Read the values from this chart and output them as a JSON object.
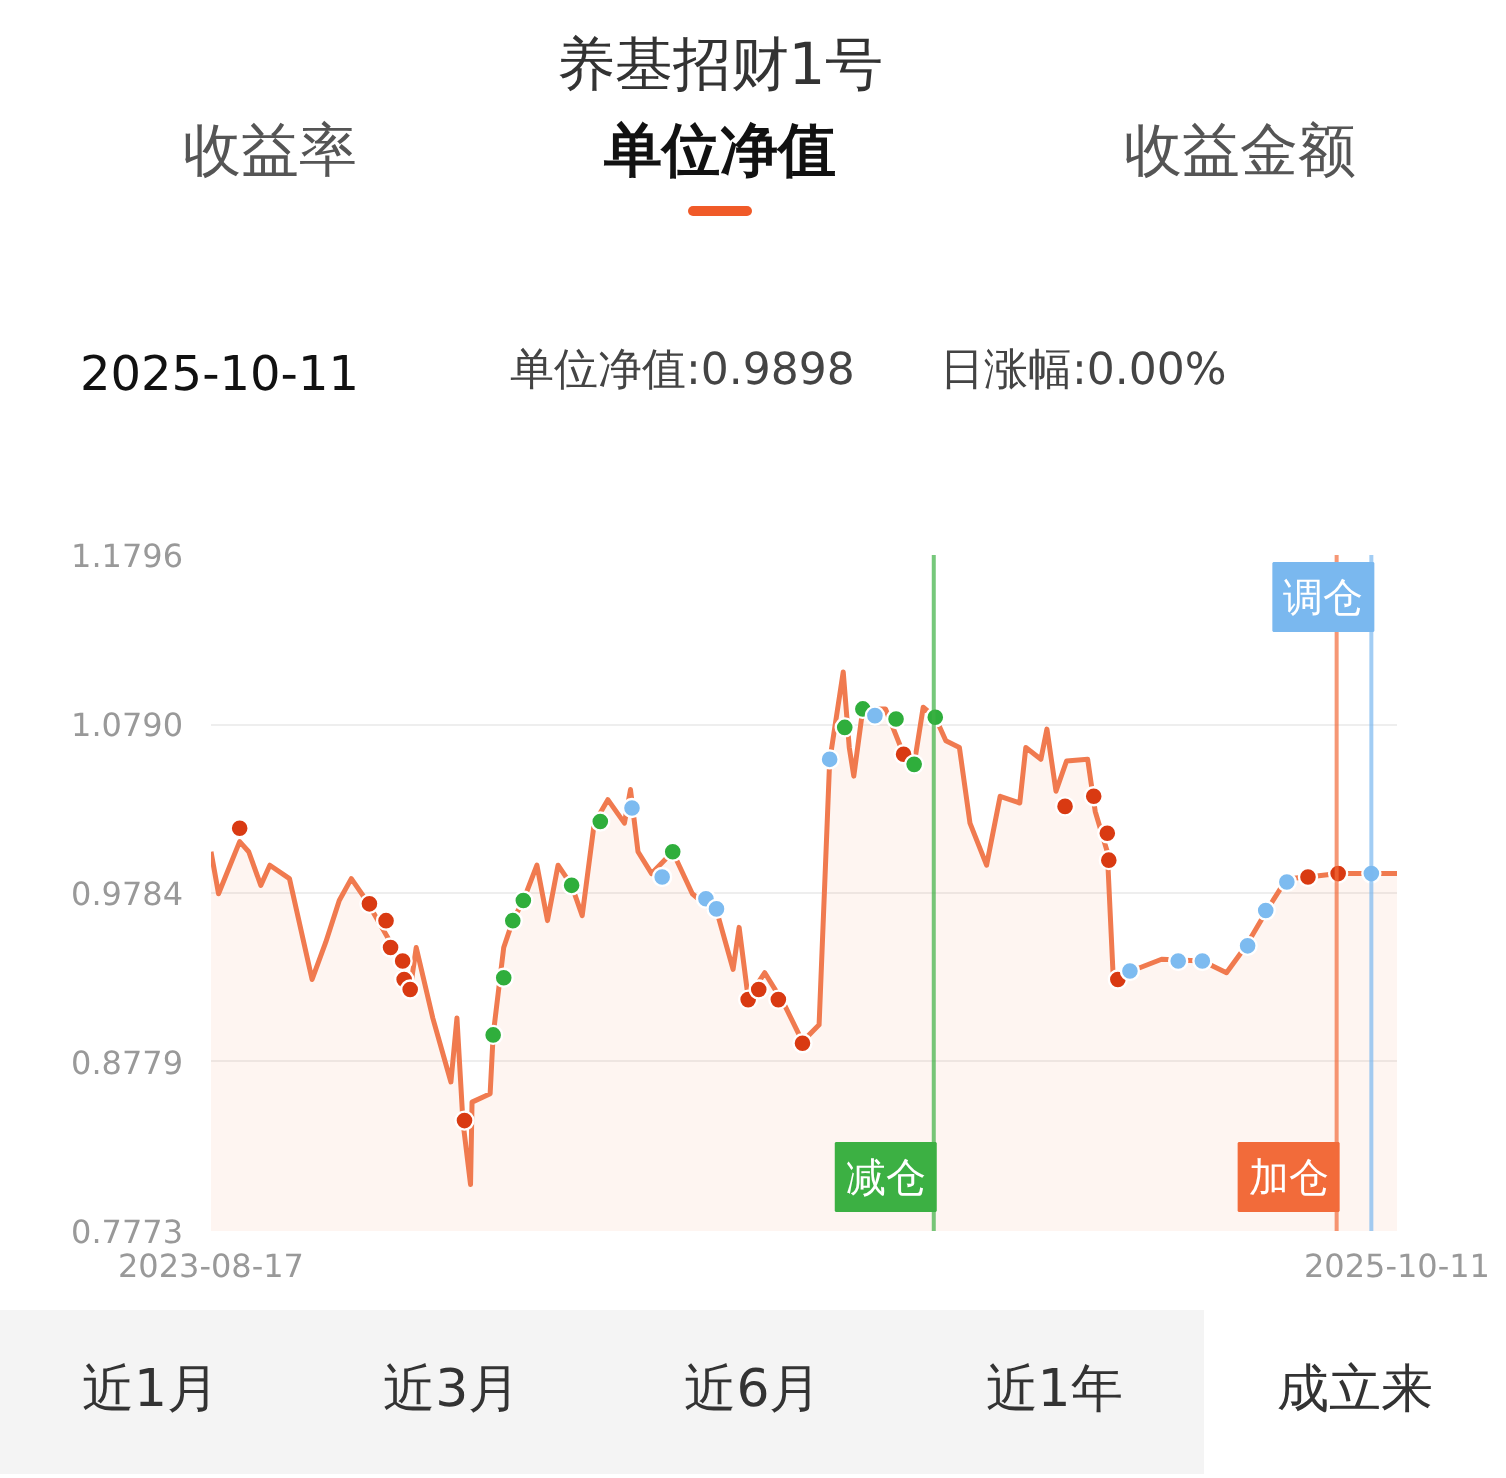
{
  "chart_data": {
    "type": "area",
    "title": "养基招财1号",
    "annotations": [
      "收益率",
      "单位净值",
      "收益金额",
      "2025-10-11",
      "单位净值:0.9898",
      "日涨幅:0.00%",
      "近1月",
      "近3月",
      "近6月",
      "近1年",
      "成立来"
    ],
    "xlim": [
      "2023-08-17",
      "2025-10-11"
    ],
    "xticks": [
      {
        "value": "2023-08-17",
        "label": "2023-08-17"
      },
      {
        "value": "2025-10-11",
        "label": "2025-10-11"
      }
    ],
    "ylim": [
      0.7773,
      1.1796
    ],
    "yticks": [
      0.7773,
      0.8779,
      0.9784,
      {
        "value": 1.079,
        "label": "1.0790"
      },
      1.1796
    ],
    "grid": "y",
    "ref_lines": [
      {
        "axis": "x",
        "value": "2024-12-08",
        "label": "减仓",
        "color": "#3cb043"
      },
      {
        "axis": "x",
        "value": "2025-09-01",
        "label": "加仓",
        "color": "#f26b3a"
      },
      {
        "axis": "x",
        "value": "2025-09-24",
        "label": "调仓",
        "color": "#7ab8ef"
      }
    ],
    "series": [
      {
        "color": "#f07a4f",
        "marker": "none",
        "x": [
          "2023-08-17",
          "2023-08-22",
          "2023-09-05",
          "2023-09-11",
          "2023-09-19",
          "2023-09-25",
          "2023-10-08",
          "2023-10-23",
          "2023-11-01",
          "2023-11-10",
          "2023-11-18",
          "2023-11-28",
          "2023-12-14",
          "2023-12-27",
          "2023-12-31",
          "2024-01-11",
          "2024-01-23",
          "2024-01-27",
          "2024-01-31",
          "2024-02-05",
          "2024-02-06",
          "2024-02-18",
          "2024-02-20",
          "2024-02-27",
          "2024-03-04",
          "2024-03-11",
          "2024-03-20",
          "2024-03-27",
          "2024-04-03",
          "2024-04-12",
          "2024-04-19",
          "2024-04-27",
          "2024-05-06",
          "2024-05-17",
          "2024-05-21",
          "2024-05-26",
          "2024-06-04",
          "2024-06-18",
          "2024-07-01",
          "2024-07-18",
          "2024-07-28",
          "2024-08-01",
          "2024-08-07",
          "2024-08-18",
          "2024-08-31",
          "2024-09-12",
          "2024-09-23",
          "2024-09-30",
          "2024-10-09",
          "2024-10-13",
          "2024-10-16",
          "2024-10-22",
          "2024-11-06",
          "2024-11-18",
          "2024-11-25",
          "2024-12-01",
          "2024-12-09",
          "2024-12-16",
          "2024-12-25",
          "2025-01-01",
          "2025-01-12",
          "2025-01-21",
          "2025-02-03",
          "2025-02-07",
          "2025-02-17",
          "2025-02-21",
          "2025-02-27",
          "2025-03-06",
          "2025-03-20",
          "2025-03-25",
          "2025-04-02",
          "2025-04-06",
          "2025-04-15",
          "2025-05-08",
          "2025-06-04",
          "2025-06-20",
          "2025-07-03",
          "2025-07-18",
          "2025-07-30",
          "2025-08-13",
          "2025-09-02",
          "2025-09-22",
          "2025-10-11"
        ],
        "values": [
          1.003,
          0.978,
          1.009,
          1.003,
          0.983,
          0.995,
          0.987,
          0.927,
          0.949,
          0.974,
          0.987,
          0.974,
          0.949,
          0.921,
          0.946,
          0.904,
          0.866,
          0.904,
          0.842,
          0.805,
          0.854,
          0.859,
          0.894,
          0.946,
          0.962,
          0.974,
          0.995,
          0.962,
          0.995,
          0.983,
          0.965,
          1.02,
          1.034,
          1.02,
          1.04,
          1.003,
          0.99,
          1.003,
          0.978,
          0.965,
          0.933,
          0.958,
          0.916,
          0.931,
          0.912,
          0.89,
          0.9,
          1.057,
          1.11,
          1.065,
          1.048,
          1.088,
          1.088,
          1.061,
          1.055,
          1.089,
          1.083,
          1.069,
          1.065,
          1.02,
          0.995,
          1.036,
          1.032,
          1.065,
          1.058,
          1.076,
          1.039,
          1.057,
          1.058,
          1.027,
          1.003,
          0.927,
          0.931,
          0.939,
          0.938,
          0.931,
          0.947,
          0.97,
          0.987,
          0.988,
          0.99,
          0.99,
          0.99
        ]
      },
      {
        "type": "scatter",
        "color": "#d93a12",
        "marker": "circle",
        "x": [
          "2023-09-05",
          "2023-11-30",
          "2023-12-11",
          "2023-12-14",
          "2023-12-22",
          "2023-12-23",
          "2023-12-27",
          "2024-02-01",
          "2024-08-07",
          "2024-08-14",
          "2024-08-27",
          "2024-09-12",
          "2024-11-18",
          "2025-03-05",
          "2025-03-24",
          "2025-04-02",
          "2025-04-03",
          "2025-04-09",
          "2025-08-13",
          "2025-09-02"
        ],
        "values": [
          1.017,
          0.972,
          0.962,
          0.946,
          0.938,
          0.927,
          0.921,
          0.843,
          0.915,
          0.921,
          0.915,
          0.889,
          1.061,
          1.03,
          1.036,
          1.014,
          0.998,
          0.927,
          0.988,
          0.99
        ]
      },
      {
        "type": "scatter",
        "color": "#2fae3c",
        "marker": "circle",
        "x": [
          "2024-02-20",
          "2024-02-27",
          "2024-03-04",
          "2024-03-11",
          "2024-04-12",
          "2024-05-01",
          "2024-06-18",
          "2024-10-10",
          "2024-10-22",
          "2024-11-13",
          "2024-11-25",
          "2024-12-09"
        ],
        "values": [
          0.894,
          0.928,
          0.962,
          0.974,
          0.983,
          1.021,
          1.003,
          1.077,
          1.088,
          1.082,
          1.055,
          1.083
        ]
      },
      {
        "type": "scatter",
        "color": "#7dbbf0",
        "marker": "circle",
        "x": [
          "2024-05-22",
          "2024-06-11",
          "2024-07-10",
          "2024-07-17",
          "2024-09-30",
          "2024-10-30",
          "2025-04-17",
          "2025-05-19",
          "2025-06-04",
          "2025-07-04",
          "2025-07-16",
          "2025-07-30",
          "2025-09-24"
        ],
        "values": [
          1.029,
          0.988,
          0.975,
          0.969,
          1.058,
          1.084,
          0.932,
          0.938,
          0.938,
          0.947,
          0.968,
          0.985,
          0.99
        ]
      }
    ]
  }
}
